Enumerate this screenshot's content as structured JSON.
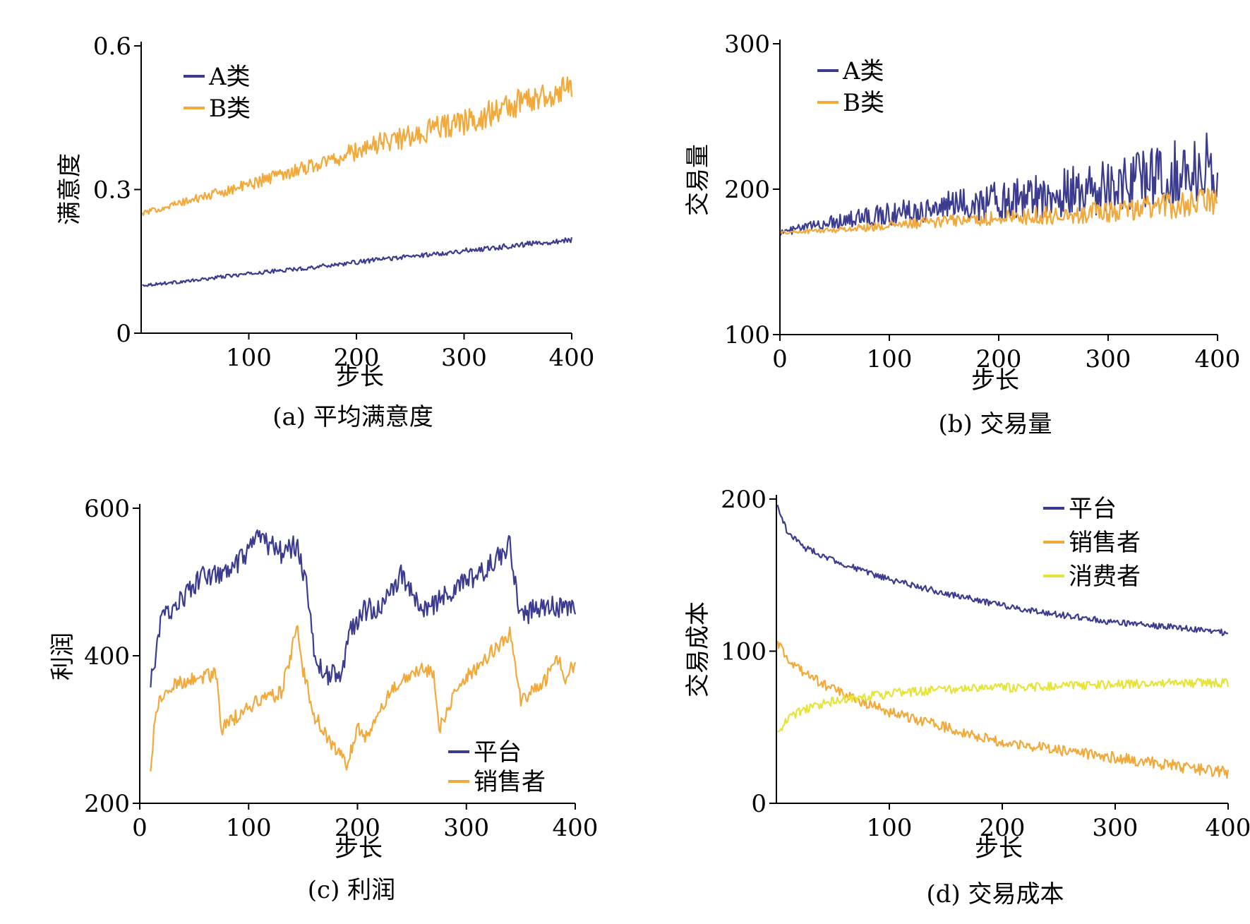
{
  "chart_data": [
    {
      "type": "line",
      "caption": "(a) 平均满意度",
      "xlabel": "步长",
      "ylabel": "满意度",
      "xlim": [
        0,
        400
      ],
      "ylim": [
        0,
        0.6
      ],
      "xticks": [
        100,
        200,
        300,
        400
      ],
      "xtick_labels": [
        "100",
        "200",
        "300",
        "400"
      ],
      "yticks": [
        0,
        0.3,
        0.6
      ],
      "ytick_labels": [
        "0",
        "0.3",
        "0.6"
      ],
      "grid": false,
      "legend_position": "top-left",
      "series": [
        {
          "name": "A类",
          "color": "#3b3c8f",
          "x": [
            1,
            25,
            50,
            75,
            100,
            125,
            150,
            175,
            200,
            225,
            250,
            275,
            300,
            325,
            350,
            375,
            400
          ],
          "values": [
            0.1,
            0.105,
            0.11,
            0.118,
            0.124,
            0.13,
            0.135,
            0.142,
            0.148,
            0.155,
            0.16,
            0.166,
            0.172,
            0.178,
            0.184,
            0.19,
            0.195
          ],
          "noise": [
            0.003,
            0.006
          ]
        },
        {
          "name": "B类",
          "color": "#f2a93b",
          "x": [
            1,
            25,
            50,
            75,
            100,
            125,
            150,
            175,
            200,
            225,
            250,
            275,
            300,
            325,
            350,
            375,
            400
          ],
          "values": [
            0.25,
            0.265,
            0.28,
            0.295,
            0.31,
            0.33,
            0.345,
            0.36,
            0.38,
            0.4,
            0.41,
            0.43,
            0.44,
            0.46,
            0.48,
            0.5,
            0.51
          ],
          "noise": [
            0.005,
            0.035
          ]
        }
      ]
    },
    {
      "type": "line",
      "caption": "(b) 交易量",
      "xlabel": "步长",
      "ylabel": "交易量",
      "xlim": [
        0,
        400
      ],
      "ylim": [
        100,
        300
      ],
      "xticks": [
        0,
        100,
        200,
        300,
        400
      ],
      "xtick_labels": [
        "0",
        "100",
        "200",
        "300",
        "400"
      ],
      "yticks": [
        100,
        200,
        300
      ],
      "ytick_labels": [
        "100",
        "200",
        "300"
      ],
      "grid": false,
      "legend_position": "top-left",
      "series": [
        {
          "name": "A类",
          "color": "#3b3c8f",
          "x": [
            0,
            50,
            100,
            150,
            200,
            250,
            300,
            350,
            400
          ],
          "values": [
            170,
            178,
            183,
            188,
            192,
            197,
            202,
            210,
            215
          ],
          "noise": [
            2,
            25
          ]
        },
        {
          "name": "B类",
          "color": "#f2a93b",
          "x": [
            0,
            50,
            100,
            150,
            200,
            250,
            300,
            350,
            400
          ],
          "values": [
            170,
            172,
            175,
            178,
            180,
            182,
            185,
            188,
            192
          ],
          "noise": [
            1,
            10
          ]
        }
      ]
    },
    {
      "type": "line",
      "caption": "(c) 利润",
      "xlabel": "步长",
      "ylabel": "利润",
      "xlim": [
        0,
        400
      ],
      "ylim": [
        200,
        600
      ],
      "xticks": [
        0,
        100,
        200,
        300,
        400
      ],
      "xtick_labels": [
        "0",
        "100",
        "200",
        "300",
        "400"
      ],
      "yticks": [
        200,
        400,
        600
      ],
      "ytick_labels": [
        "200",
        "400",
        "600"
      ],
      "grid": false,
      "legend_position": "bottom-right",
      "series": [
        {
          "name": "平台",
          "color": "#3b3c8f",
          "x": [
            10,
            20,
            40,
            60,
            80,
            100,
            110,
            130,
            145,
            155,
            160,
            170,
            185,
            195,
            205,
            225,
            240,
            260,
            280,
            300,
            320,
            340,
            350,
            370,
            400
          ],
          "values": [
            360,
            450,
            480,
            510,
            510,
            540,
            560,
            540,
            550,
            480,
            400,
            375,
            375,
            440,
            460,
            470,
            510,
            460,
            480,
            500,
            520,
            550,
            450,
            470,
            460
          ],
          "noise": [
            15,
            15
          ]
        },
        {
          "name": "销售者",
          "color": "#f2a93b",
          "x": [
            10,
            15,
            30,
            50,
            70,
            75,
            90,
            110,
            130,
            145,
            150,
            160,
            180,
            190,
            200,
            210,
            230,
            250,
            270,
            275,
            290,
            300,
            320,
            340,
            350,
            370,
            385,
            390,
            400
          ],
          "values": [
            245,
            330,
            360,
            370,
            375,
            300,
            320,
            340,
            350,
            440,
            380,
            320,
            270,
            255,
            300,
            290,
            350,
            380,
            380,
            300,
            350,
            370,
            400,
            430,
            340,
            360,
            400,
            370,
            390
          ],
          "noise": [
            10,
            10
          ]
        }
      ]
    },
    {
      "type": "line",
      "caption": "(d) 交易成本",
      "xlabel": "步长",
      "ylabel": "交易成本",
      "xlim": [
        0,
        400
      ],
      "ylim": [
        0,
        200
      ],
      "xticks": [
        100,
        200,
        300,
        400
      ],
      "xtick_labels": [
        "100",
        "200",
        "300",
        "400"
      ],
      "yticks": [
        0,
        100,
        200
      ],
      "ytick_labels": [
        "0",
        "100",
        "200"
      ],
      "grid": false,
      "legend_position": "top-right",
      "series": [
        {
          "name": "平台",
          "color": "#3b3c8f",
          "x": [
            1,
            10,
            25,
            50,
            75,
            100,
            150,
            200,
            250,
            300,
            350,
            400
          ],
          "values": [
            195,
            178,
            168,
            160,
            153,
            147,
            138,
            130,
            124,
            119,
            116,
            112
          ],
          "noise": [
            2,
            2
          ]
        },
        {
          "name": "销售者",
          "color": "#f2a93b",
          "x": [
            1,
            10,
            25,
            50,
            75,
            100,
            150,
            200,
            250,
            300,
            350,
            400
          ],
          "values": [
            105,
            95,
            85,
            75,
            67,
            60,
            50,
            40,
            35,
            30,
            25,
            20
          ],
          "noise": [
            3,
            4
          ]
        },
        {
          "name": "消费者",
          "color": "#e6e33a",
          "x": [
            1,
            10,
            25,
            50,
            75,
            100,
            150,
            200,
            250,
            300,
            350,
            400
          ],
          "values": [
            45,
            55,
            62,
            67,
            70,
            72,
            75,
            76,
            77,
            78,
            79,
            79
          ],
          "noise": [
            3,
            3
          ]
        }
      ]
    }
  ]
}
